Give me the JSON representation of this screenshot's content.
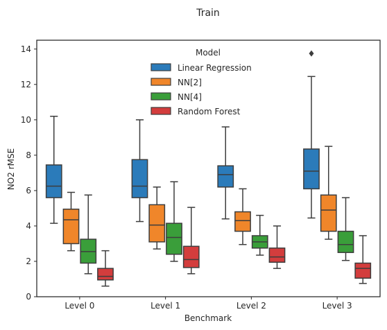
{
  "chart_data": {
    "type": "box",
    "title": "Train",
    "xlabel": "Benchmark",
    "ylabel": "NO2 rMSE",
    "ylim": [
      0,
      14.5
    ],
    "yticks": [
      0,
      2,
      4,
      6,
      8,
      10,
      12,
      14
    ],
    "categories": [
      "Level 0",
      "Level 1",
      "Level 2",
      "Level 3"
    ],
    "legend": {
      "title": "Model",
      "position": "upper center"
    },
    "grid": false,
    "series": [
      {
        "name": "Linear Regression",
        "color": "#2b7bba",
        "boxes": [
          {
            "whislo": 4.15,
            "q1": 5.6,
            "med": 6.25,
            "q3": 7.45,
            "whishi": 10.2,
            "fliers": []
          },
          {
            "whislo": 4.25,
            "q1": 5.6,
            "med": 6.25,
            "q3": 7.75,
            "whishi": 10.0,
            "fliers": []
          },
          {
            "whislo": 4.4,
            "q1": 6.2,
            "med": 6.9,
            "q3": 7.4,
            "whishi": 9.6,
            "fliers": []
          },
          {
            "whislo": 4.45,
            "q1": 6.1,
            "med": 7.1,
            "q3": 8.35,
            "whishi": 12.45,
            "fliers": [
              13.75
            ]
          }
        ]
      },
      {
        "name": "NN[2]",
        "color": "#f0862a",
        "boxes": [
          {
            "whislo": 2.6,
            "q1": 3.0,
            "med": 4.35,
            "q3": 4.95,
            "whishi": 5.9,
            "fliers": []
          },
          {
            "whislo": 2.7,
            "q1": 3.1,
            "med": 4.05,
            "q3": 5.2,
            "whishi": 6.2,
            "fliers": []
          },
          {
            "whislo": 2.95,
            "q1": 3.7,
            "med": 4.3,
            "q3": 4.8,
            "whishi": 6.1,
            "fliers": []
          },
          {
            "whislo": 3.25,
            "q1": 3.7,
            "med": 4.9,
            "q3": 5.75,
            "whishi": 8.5,
            "fliers": []
          }
        ]
      },
      {
        "name": "NN[4]",
        "color": "#3a9e3a",
        "boxes": [
          {
            "whislo": 1.3,
            "q1": 1.9,
            "med": 2.55,
            "q3": 3.25,
            "whishi": 5.75,
            "fliers": []
          },
          {
            "whislo": 2.0,
            "q1": 2.4,
            "med": 3.35,
            "q3": 4.15,
            "whishi": 6.5,
            "fliers": []
          },
          {
            "whislo": 2.35,
            "q1": 2.75,
            "med": 3.1,
            "q3": 3.45,
            "whishi": 4.6,
            "fliers": []
          },
          {
            "whislo": 2.05,
            "q1": 2.5,
            "med": 2.95,
            "q3": 3.7,
            "whishi": 5.6,
            "fliers": []
          }
        ]
      },
      {
        "name": "Random Forest",
        "color": "#d33d3d",
        "boxes": [
          {
            "whislo": 0.6,
            "q1": 0.95,
            "med": 1.15,
            "q3": 1.6,
            "whishi": 2.6,
            "fliers": []
          },
          {
            "whislo": 1.3,
            "q1": 1.65,
            "med": 2.1,
            "q3": 2.85,
            "whishi": 5.05,
            "fliers": []
          },
          {
            "whislo": 1.6,
            "q1": 1.95,
            "med": 2.25,
            "q3": 2.75,
            "whishi": 4.0,
            "fliers": []
          },
          {
            "whislo": 0.75,
            "q1": 1.05,
            "med": 1.6,
            "q3": 1.9,
            "whishi": 3.45,
            "fliers": []
          }
        ]
      }
    ]
  }
}
